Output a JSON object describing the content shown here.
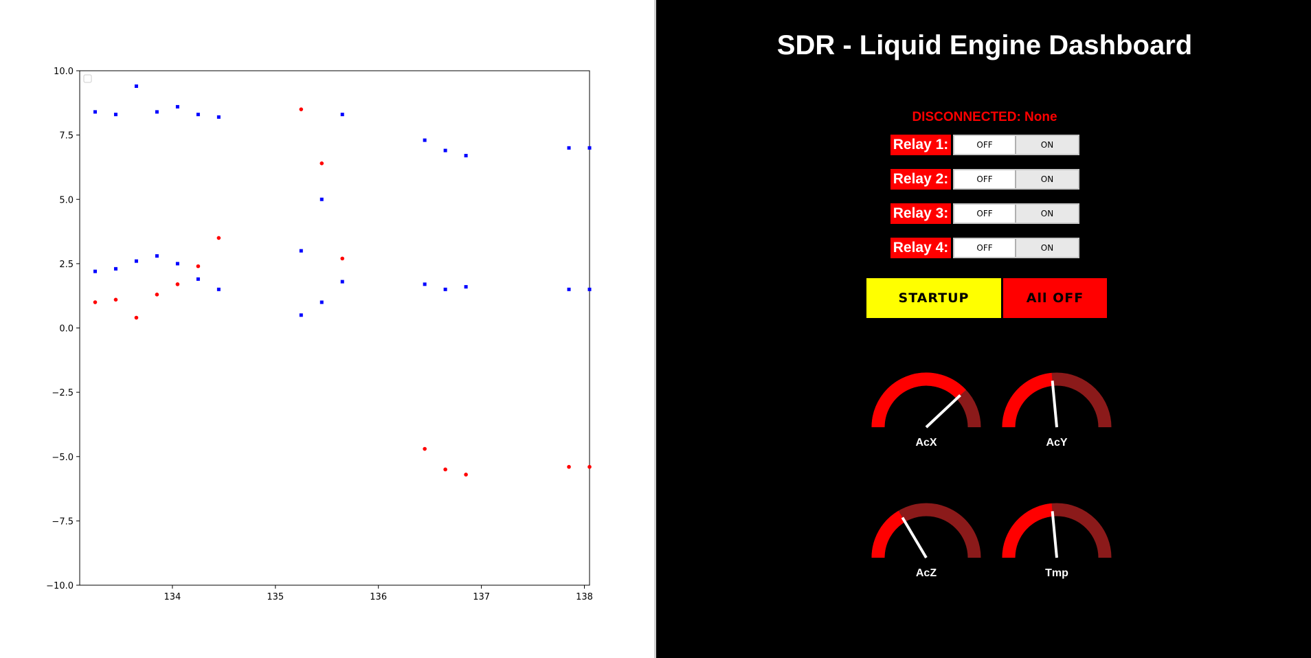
{
  "chart_data": {
    "type": "scatter",
    "title": "",
    "xlabel": "",
    "ylabel": "",
    "xlim": [
      133.1,
      138.05
    ],
    "ylim": [
      -10.0,
      10.0
    ],
    "x_ticks": [
      134,
      135,
      136,
      137,
      138
    ],
    "y_ticks": [
      10.0,
      7.5,
      5.0,
      2.5,
      0.0,
      -2.5,
      -5.0,
      -7.5,
      -10.0
    ],
    "x_tick_labels": [
      "134",
      "135",
      "136",
      "137",
      "138"
    ],
    "y_tick_labels": [
      "10.0",
      "7.5",
      "5.0",
      "2.5",
      "0.0",
      "−2.5",
      "−5.0",
      "−7.5",
      "−10.0"
    ],
    "grid": false,
    "legend": "top-left (empty)",
    "series": [
      {
        "marker": "square",
        "color": "#0000ff",
        "points": [
          [
            133.25,
            8.4
          ],
          [
            133.45,
            8.3
          ],
          [
            133.65,
            9.4
          ],
          [
            133.85,
            8.4
          ],
          [
            134.05,
            8.6
          ],
          [
            134.25,
            8.3
          ],
          [
            134.45,
            8.2
          ],
          [
            135.65,
            8.3
          ],
          [
            136.45,
            7.3
          ],
          [
            136.65,
            6.9
          ],
          [
            136.85,
            6.7
          ],
          [
            137.85,
            7.0
          ],
          [
            138.05,
            7.0
          ],
          [
            133.25,
            2.2
          ],
          [
            133.45,
            2.3
          ],
          [
            133.65,
            2.6
          ],
          [
            133.85,
            2.8
          ],
          [
            134.05,
            2.5
          ],
          [
            134.25,
            1.9
          ],
          [
            134.45,
            1.5
          ],
          [
            135.25,
            3.0
          ],
          [
            135.45,
            5.0
          ],
          [
            135.65,
            1.8
          ],
          [
            135.25,
            0.5
          ],
          [
            135.45,
            1.0
          ],
          [
            136.45,
            1.7
          ],
          [
            136.65,
            1.5
          ],
          [
            136.85,
            1.6
          ],
          [
            137.85,
            1.5
          ],
          [
            138.05,
            1.5
          ]
        ]
      },
      {
        "marker": "circle",
        "color": "#ff0000",
        "points": [
          [
            133.25,
            1.0
          ],
          [
            133.45,
            1.1
          ],
          [
            133.65,
            0.4
          ],
          [
            133.85,
            1.3
          ],
          [
            134.05,
            1.7
          ],
          [
            134.25,
            2.4
          ],
          [
            134.45,
            3.5
          ],
          [
            135.25,
            8.5
          ],
          [
            135.45,
            6.4
          ],
          [
            135.65,
            2.7
          ],
          [
            136.45,
            -4.7
          ],
          [
            136.65,
            -5.5
          ],
          [
            136.85,
            -5.7
          ],
          [
            137.85,
            -5.4
          ],
          [
            138.05,
            -5.4
          ]
        ]
      }
    ]
  },
  "dashboard": {
    "title": "SDR - Liquid Engine Dashboard",
    "status": "DISCONNECTED: None",
    "relays": [
      {
        "label": "Relay 1:",
        "off": "OFF",
        "on": "ON"
      },
      {
        "label": "Relay 2:",
        "off": "OFF",
        "on": "ON"
      },
      {
        "label": "Relay 3:",
        "off": "OFF",
        "on": "ON"
      },
      {
        "label": "Relay 4:",
        "off": "OFF",
        "on": "ON"
      }
    ],
    "startup_label": "STARTUP",
    "alloff_label": "All OFF",
    "colors": {
      "accent": "#ff0000",
      "startup": "#ffff00",
      "gauge_fill": "#ff0000",
      "gauge_track": "#8b1a1a"
    },
    "gauges": [
      {
        "label": "AcX",
        "fraction": 0.76
      },
      {
        "label": "AcY",
        "fraction": 0.47
      },
      {
        "label": "AcZ",
        "fraction": 0.33
      },
      {
        "label": "Tmp",
        "fraction": 0.47
      }
    ]
  }
}
